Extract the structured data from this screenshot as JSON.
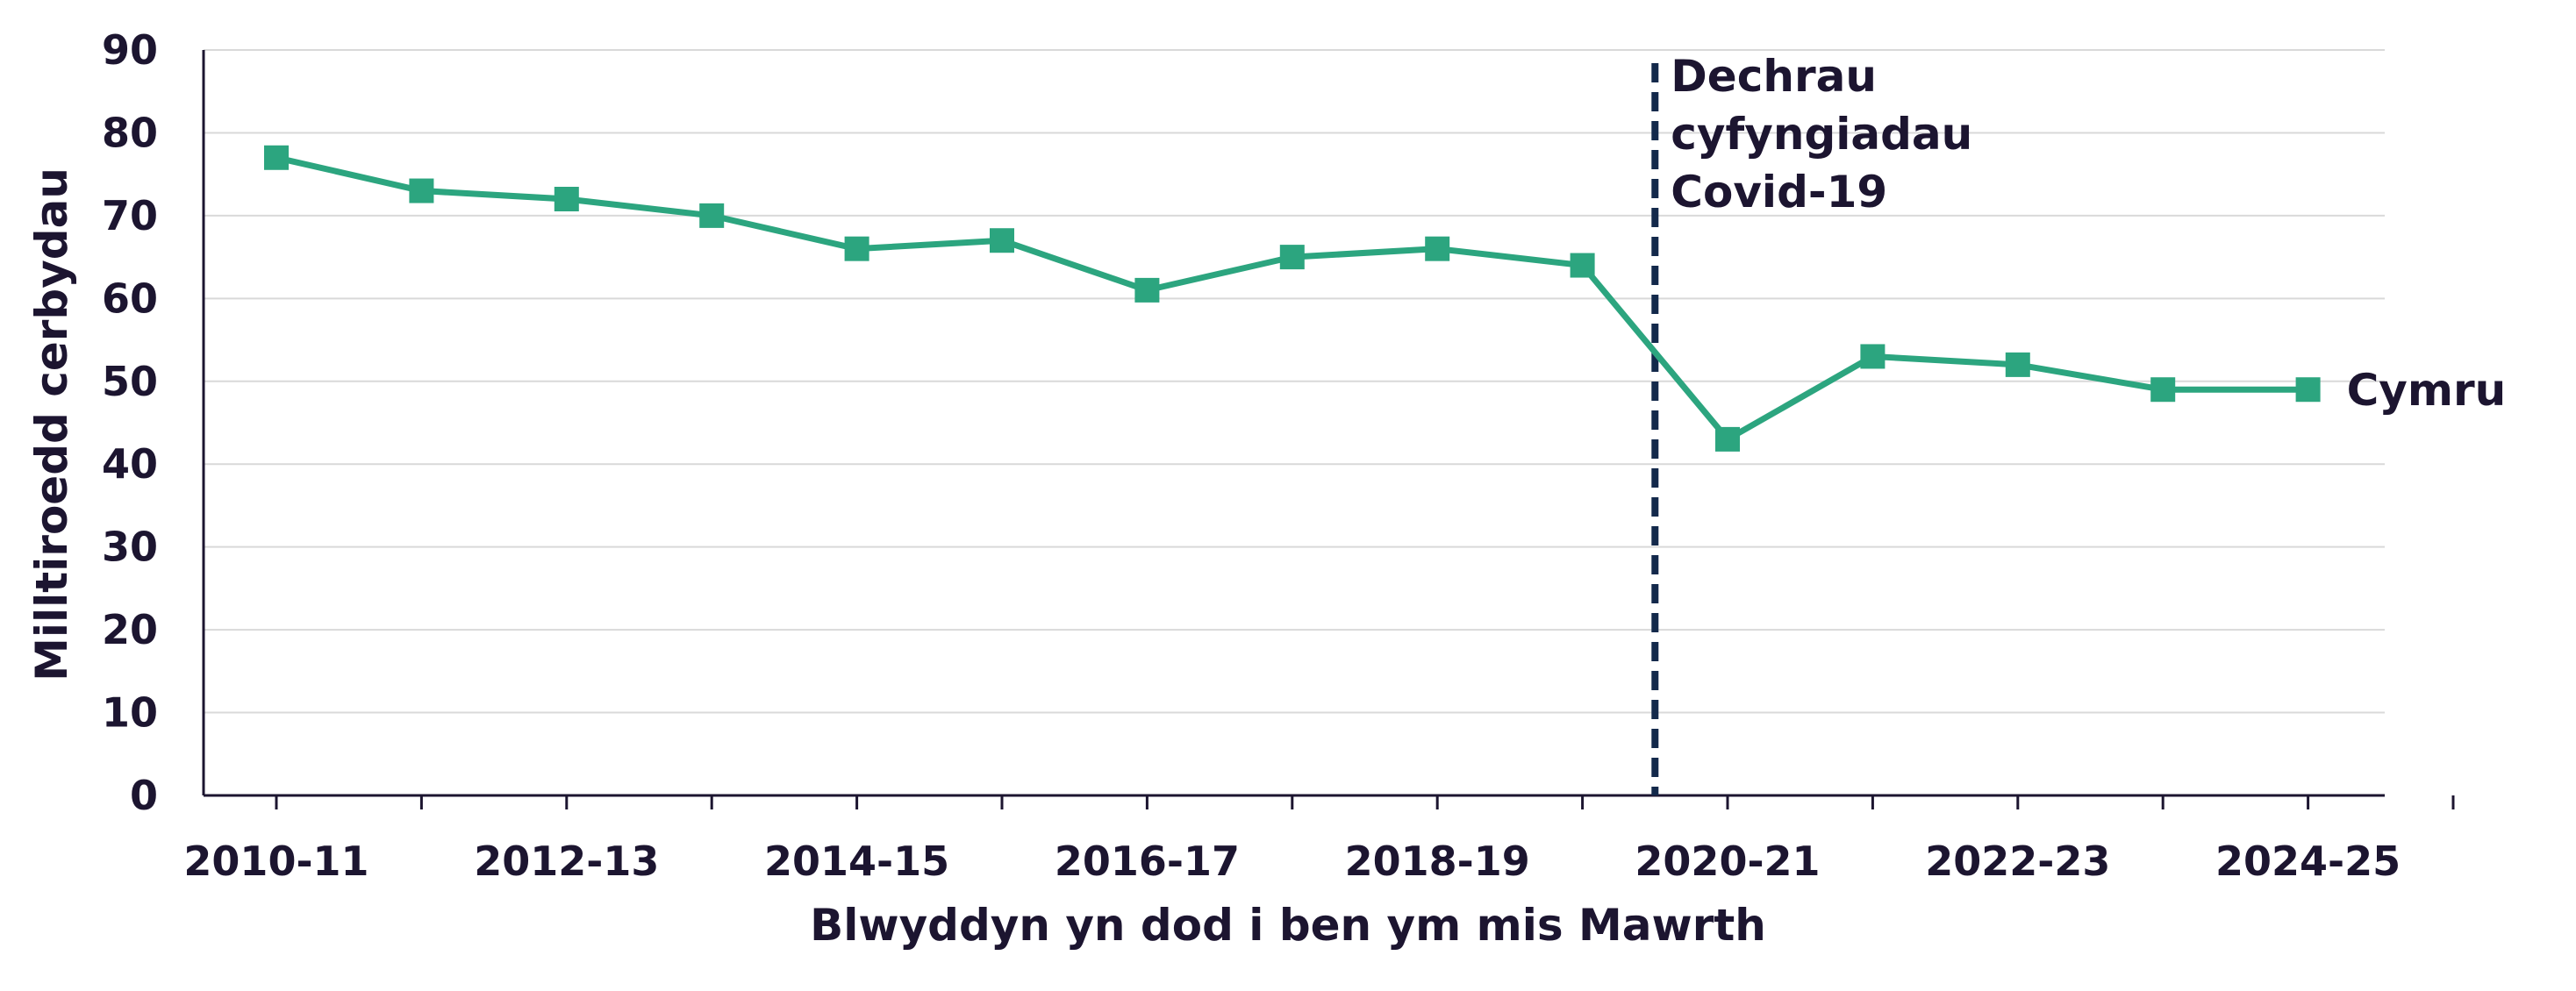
{
  "colors": {
    "series": "#2ca57f",
    "covid_line": "#13294b",
    "text": "#1c1530",
    "grid": "#d9d9d9",
    "axis": "#1c1530"
  },
  "chart_data": {
    "type": "line",
    "title": "",
    "xlabel": "Blwyddyn yn dod i ben ym mis Mawrth",
    "ylabel": "Milltiroedd cerbydau",
    "ylim": [
      0,
      90
    ],
    "yticks": [
      0,
      10,
      20,
      30,
      40,
      50,
      60,
      70,
      80,
      90
    ],
    "grid": true,
    "categories": [
      "2010-11",
      "2011-12",
      "2012-13",
      "2013-14",
      "2014-15",
      "2015-16",
      "2016-17",
      "2017-18",
      "2018-19",
      "2019-20",
      "2020-21",
      "2021-22",
      "2022-23",
      "2023-24",
      "2024-25"
    ],
    "xtick_labels": [
      "2010-11",
      "",
      "2012-13",
      "",
      "2014-15",
      "",
      "2016-17",
      "",
      "2018-19",
      "",
      "2020-21",
      "",
      "2022-23",
      "",
      "2024-25"
    ],
    "series": [
      {
        "name": "Cymru",
        "values": [
          77,
          73,
          72,
          70,
          66,
          67,
          61,
          65,
          66,
          64,
          43,
          53,
          52,
          49,
          49
        ],
        "marker": "square"
      }
    ],
    "annotations": [
      {
        "type": "vline",
        "at_category": "2019-20",
        "lines": [
          "Dechrau",
          "cyfyngiadau",
          "Covid-19"
        ]
      }
    ]
  }
}
